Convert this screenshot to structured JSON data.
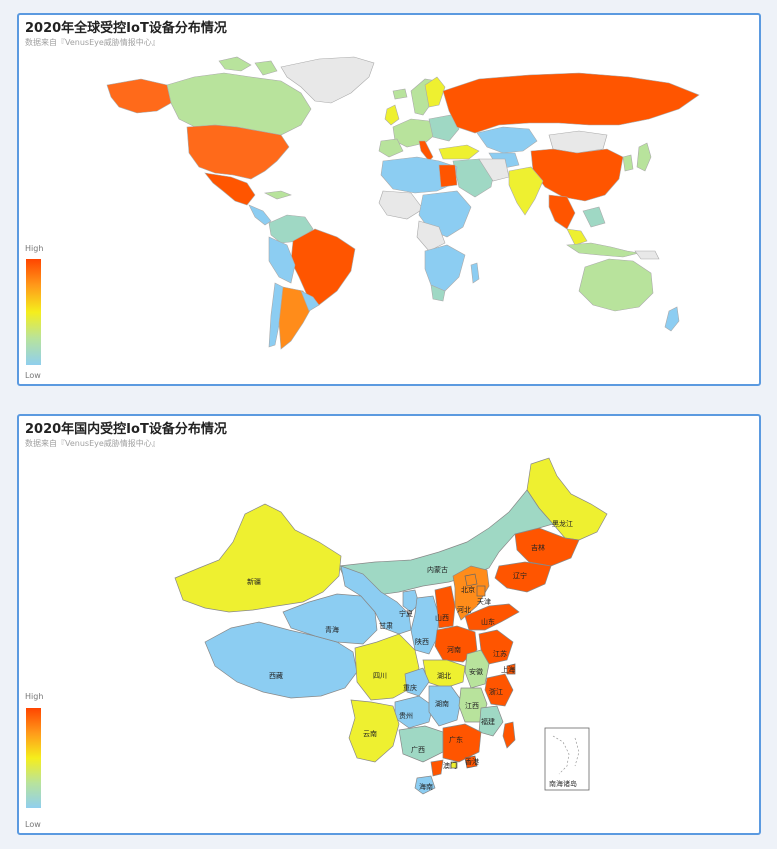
{
  "world": {
    "title": "2020年全球受控IoT设备分布情况",
    "subtitle": "数据来自『VenusEye威胁情报中心』",
    "legend_high": "High",
    "legend_low": "Low"
  },
  "china": {
    "title": "2020年国内受控IoT设备分布情况",
    "subtitle": "数据来自『VenusEye威胁情报中心』",
    "legend_high": "High",
    "legend_low": "Low",
    "provinces": {
      "heilongjiang": "黑龙江",
      "jilin": "吉林",
      "liaoning": "辽宁",
      "neimenggu": "内蒙古",
      "xinjiang": "新疆",
      "qinghai": "青海",
      "xizang": "西藏",
      "gansu": "甘肃",
      "ningxia": "宁夏",
      "shaanxi": "陕西",
      "shanxi": "山西",
      "hebei": "河北",
      "beijing": "北京",
      "tianjin": "天津",
      "shandong": "山东",
      "henan": "河南",
      "jiangsu": "江苏",
      "anhui": "安徽",
      "shanghai": "上海",
      "zhejiang": "浙江",
      "hubei": "湖北",
      "sichuan": "四川",
      "chongqing": "重庆",
      "guizhou": "贵州",
      "hunan": "湖南",
      "jiangxi": "江西",
      "fujian": "福建",
      "yunnan": "云南",
      "guangxi": "广西",
      "guangdong": "广东",
      "hongkong": "香港",
      "macau": "澳门",
      "hainan": "海南",
      "nanhai": "南海诸岛"
    }
  },
  "colors": {
    "high": "#ff5500",
    "orange": "#ff8c1a",
    "yellow": "#eef030",
    "light_green": "#b8e39c",
    "teal": "#9fd8c4",
    "blue": "#8ccdf2",
    "no_data": "#e8e8e8",
    "border": "#5b9ae0"
  }
}
